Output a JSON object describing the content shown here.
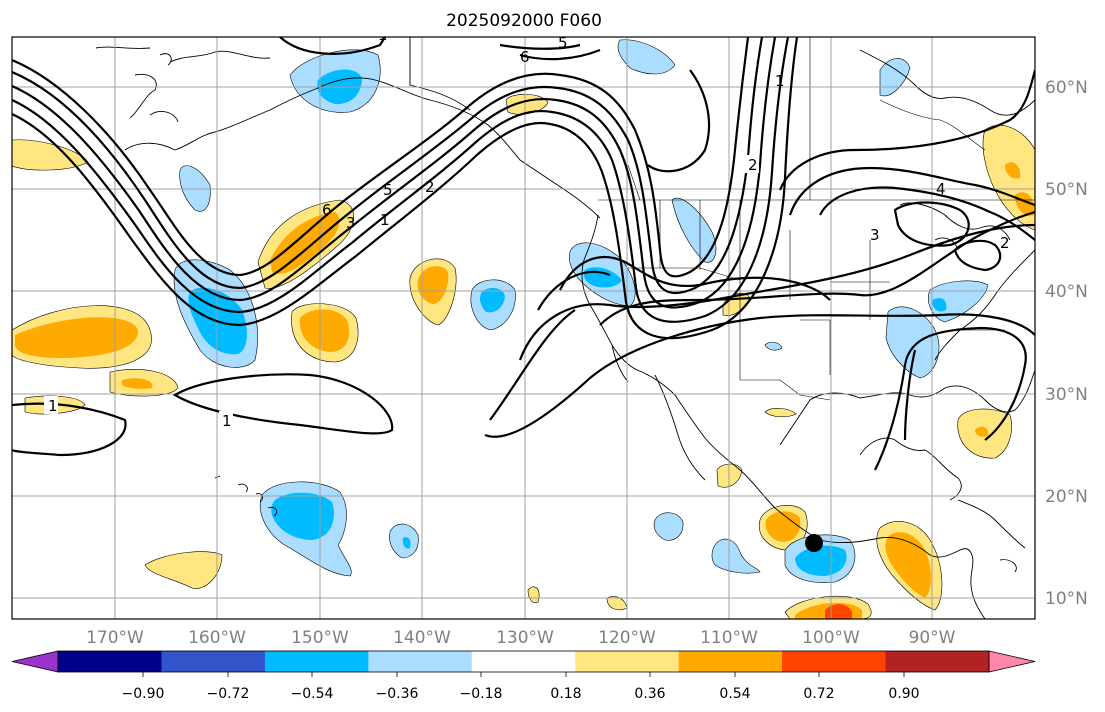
{
  "title": "2025092000 F060",
  "lon_labels": [
    "170°W",
    "160°W",
    "150°W",
    "140°W",
    "130°W",
    "120°W",
    "110°W",
    "100°W",
    "90°W"
  ],
  "lat_labels": [
    "60°N",
    "50°N",
    "40°N",
    "30°N",
    "20°N",
    "10°N"
  ],
  "contour_labels": [
    "1",
    "1",
    "2",
    "3",
    "5",
    "6",
    "6",
    "5",
    "1",
    "2",
    "3",
    "4",
    "2",
    "1",
    "1"
  ],
  "colorbar": {
    "ticks": [
      "−0.90",
      "−0.72",
      "−0.54",
      "−0.36",
      "−0.18",
      "0.18",
      "0.36",
      "0.54",
      "0.72",
      "0.90"
    ],
    "colors": [
      "#9933cc",
      "#000088",
      "#3355cc",
      "#00bbff",
      "#aaddff",
      "#ffffff",
      "#ffe680",
      "#ffaa00",
      "#ff4400",
      "#b22222",
      "#ff88aa"
    ]
  },
  "storm_marker": "tropical-cyclone-position"
}
